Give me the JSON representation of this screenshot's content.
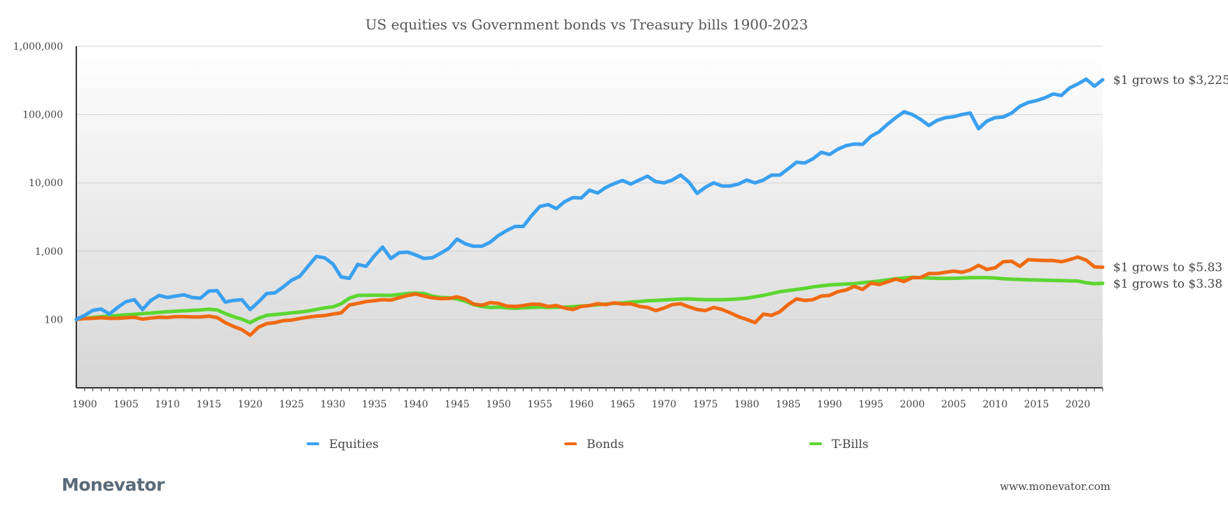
{
  "branding": {
    "logo": "Monevator",
    "website": "www.monevator.com"
  },
  "chart_data": {
    "type": "line",
    "title": "US equities vs Government bonds vs Treasury bills 1900-2023",
    "yscale": "log",
    "ylim": [
      10,
      1000000
    ],
    "yticks": [
      {
        "value": 1000000,
        "label": "1,000,000"
      },
      {
        "value": 100000,
        "label": "100,000"
      },
      {
        "value": 10000,
        "label": "10,000"
      },
      {
        "value": 1000,
        "label": "1,000"
      },
      {
        "value": 100,
        "label": "100"
      }
    ],
    "xlim": [
      1899,
      2023
    ],
    "xticks": [
      1900,
      1905,
      1910,
      1915,
      1920,
      1925,
      1930,
      1935,
      1940,
      1945,
      1950,
      1955,
      1960,
      1965,
      1970,
      1975,
      1980,
      1985,
      1990,
      1995,
      2000,
      2005,
      2010,
      2015,
      2020
    ],
    "xlabel": "",
    "ylabel": "",
    "x_start": 1899,
    "series": [
      {
        "name": "Equities",
        "color": "#3aa0f0",
        "end_label": "$1 grows to $3,225",
        "values": [
          100,
          115,
          136,
          142,
          120,
          150,
          182,
          195,
          140,
          190,
          225,
          210,
          220,
          230,
          210,
          205,
          260,
          265,
          180,
          190,
          195,
          140,
          180,
          240,
          245,
          300,
          375,
          430,
          600,
          840,
          800,
          650,
          420,
          400,
          640,
          600,
          850,
          1150,
          780,
          950,
          970,
          880,
          780,
          800,
          930,
          1100,
          1500,
          1280,
          1180,
          1180,
          1350,
          1700,
          2000,
          2300,
          2300,
          3300,
          4500,
          4800,
          4200,
          5300,
          6100,
          6000,
          7800,
          7100,
          8600,
          9800,
          10800,
          9600,
          11000,
          12500,
          10400,
          10000,
          11000,
          13000,
          10300,
          7000,
          8600,
          10000,
          9000,
          9000,
          9600,
          11000,
          10000,
          11000,
          13000,
          13000,
          16000,
          20000,
          19500,
          22500,
          28000,
          26000,
          31000,
          35000,
          37000,
          36500,
          48000,
          56000,
          72000,
          90000,
          110000,
          100000,
          85000,
          69000,
          82000,
          90000,
          93000,
          100000,
          105000,
          62000,
          80000,
          90000,
          92000,
          105000,
          132000,
          150000,
          160000,
          175000,
          200000,
          190000,
          245000,
          280000,
          330000,
          260000,
          322500
        ]
      },
      {
        "name": "Bonds",
        "color": "#f06a10",
        "end_label": "$1 grows to $5.83",
        "values": [
          100,
          103,
          104,
          106,
          104,
          104,
          106,
          108,
          101,
          105,
          108,
          107,
          110,
          110,
          109,
          109,
          112,
          107,
          90,
          79,
          71,
          59,
          77,
          87,
          90,
          96,
          98,
          103,
          108,
          112,
          114,
          120,
          125,
          163,
          172,
          183,
          188,
          195,
          192,
          208,
          224,
          236,
          220,
          208,
          202,
          203,
          215,
          198,
          168,
          162,
          176,
          172,
          157,
          155,
          160,
          168,
          167,
          155,
          160,
          147,
          140,
          155,
          160,
          170,
          165,
          175,
          168,
          170,
          156,
          150,
          135,
          147,
          165,
          170,
          153,
          140,
          135,
          150,
          140,
          125,
          110,
          100,
          90,
          120,
          115,
          130,
          165,
          200,
          190,
          195,
          220,
          225,
          255,
          270,
          305,
          275,
          340,
          325,
          355,
          390,
          360,
          410,
          410,
          470,
          470,
          490,
          510,
          490,
          530,
          620,
          540,
          570,
          700,
          710,
          600,
          750,
          740,
          730,
          730,
          700,
          750,
          820,
          740,
          590,
          583
        ]
      },
      {
        "name": "T-Bills",
        "color": "#5cd630",
        "end_label": "$1 grows to $3.38",
        "values": [
          100,
          104,
          107,
          110,
          112,
          114,
          117,
          119,
          122,
          124,
          127,
          130,
          132,
          134,
          136,
          138,
          141,
          138,
          122,
          110,
          101,
          90,
          104,
          115,
          118,
          121,
          125,
          128,
          133,
          140,
          148,
          153,
          170,
          205,
          225,
          226,
          226,
          227,
          225,
          232,
          240,
          243,
          240,
          220,
          210,
          208,
          200,
          185,
          165,
          155,
          150,
          152,
          148,
          146,
          148,
          150,
          152,
          150,
          151,
          152,
          154,
          157,
          160,
          164,
          168,
          172,
          175,
          180,
          183,
          188,
          190,
          193,
          196,
          199,
          200,
          197,
          195,
          195,
          195,
          197,
          200,
          205,
          215,
          225,
          240,
          255,
          265,
          275,
          285,
          300,
          310,
          320,
          325,
          330,
          335,
          345,
          355,
          365,
          380,
          395,
          405,
          415,
          410,
          405,
          400,
          400,
          400,
          405,
          410,
          410,
          410,
          405,
          395,
          388,
          385,
          380,
          378,
          375,
          373,
          370,
          368,
          366,
          345,
          334,
          338
        ]
      }
    ],
    "legend": {
      "position": "bottom",
      "items": [
        "Equities",
        "Bonds",
        "T-Bills"
      ]
    }
  }
}
